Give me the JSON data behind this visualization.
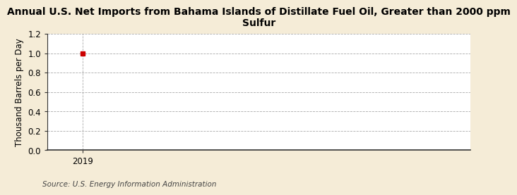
{
  "title": "Annual U.S. Net Imports from Bahama Islands of Distillate Fuel Oil, Greater than 2000 ppm\nSulfur",
  "ylabel": "Thousand Barrels per Day",
  "source": "Source: U.S. Energy Information Administration",
  "x_data": [
    2019
  ],
  "y_data": [
    1.0
  ],
  "marker_color": "#cc0000",
  "marker_size": 4,
  "xlim": [
    2018.5,
    2024.5
  ],
  "ylim": [
    0.0,
    1.2
  ],
  "yticks": [
    0.0,
    0.2,
    0.4,
    0.6,
    0.8,
    1.0,
    1.2
  ],
  "xticks": [
    2019
  ],
  "figure_bg_color": "#f5ecd7",
  "plot_bg_color": "#ffffff",
  "grid_color": "#aaaaaa",
  "spine_color": "#333333",
  "title_fontsize": 10,
  "axis_fontsize": 8.5,
  "tick_fontsize": 8.5,
  "source_fontsize": 7.5
}
